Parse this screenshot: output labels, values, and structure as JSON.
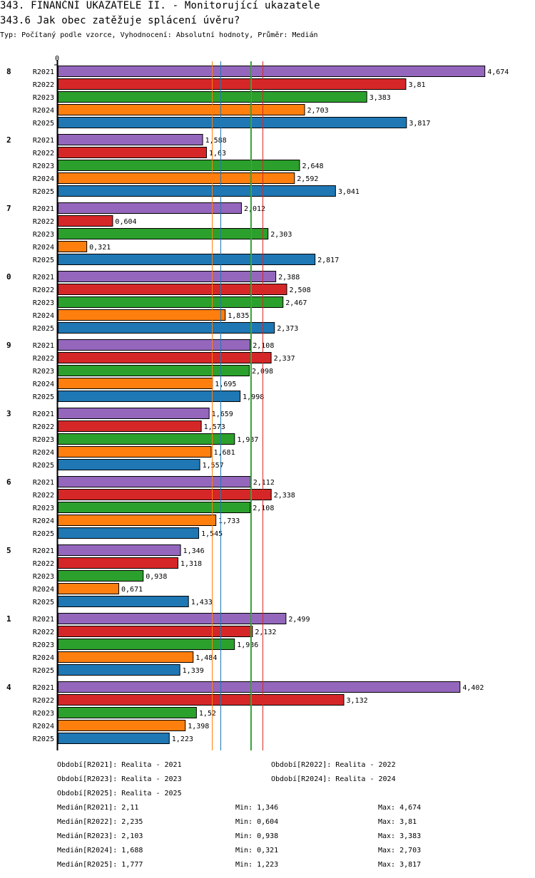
{
  "header": {
    "title": "343. FINANČNÍ UKAZATELE II. - Monitorující ukazatele",
    "question": "343.6 Jak obec zatěžuje splácení úvěru?",
    "subtitle": "Typ: Počítaný podle vzorce, Vyhodnocení: Absolutní hodnoty, Průměr: Medián"
  },
  "chart_data": {
    "type": "bar",
    "orientation": "horizontal",
    "title": "343.6 Jak obec zatěžuje splácení úvěru?",
    "xlabel": "",
    "ylabel": "",
    "x_tick_labels": [
      "0"
    ],
    "xlim": [
      0,
      4.674
    ],
    "grid": false,
    "legend_position": "bottom",
    "decimal_separator": ",",
    "categories": [
      "8",
      "2",
      "7",
      "0",
      "9",
      "3",
      "6",
      "5",
      "1",
      "4"
    ],
    "series": [
      {
        "name": "R2021",
        "label": "Realita - 2021",
        "color": "#9467bd",
        "values": [
          4.674,
          1.588,
          2.012,
          2.388,
          2.108,
          1.659,
          2.112,
          1.346,
          2.499,
          4.402
        ]
      },
      {
        "name": "R2022",
        "label": "Realita - 2022",
        "color": "#d62728",
        "values": [
          3.81,
          1.63,
          0.604,
          2.508,
          2.337,
          1.573,
          2.338,
          1.318,
          2.132,
          3.132
        ]
      },
      {
        "name": "R2023",
        "label": "Realita - 2023",
        "color": "#2ca02c",
        "values": [
          3.383,
          2.648,
          2.303,
          2.467,
          2.098,
          1.937,
          2.108,
          0.938,
          1.936,
          1.52
        ]
      },
      {
        "name": "R2024",
        "label": "Realita - 2024",
        "color": "#ff7f0e",
        "values": [
          2.703,
          2.592,
          0.321,
          1.835,
          1.695,
          1.681,
          1.733,
          0.671,
          1.484,
          1.398
        ]
      },
      {
        "name": "R2025",
        "label": "Realita - 2025",
        "color": "#1f77b4",
        "values": [
          3.817,
          3.041,
          2.817,
          2.373,
          1.998,
          1.557,
          1.545,
          1.433,
          1.339,
          1.223
        ]
      }
    ],
    "median_lines": [
      {
        "series": "R2024",
        "value": 1.688,
        "color": "#ff7f0e"
      },
      {
        "series": "R2025",
        "value": 1.777,
        "color": "#1f77b4"
      },
      {
        "series": "R2023",
        "value": 2.103,
        "color": "#2ca02c"
      },
      {
        "series": "R2021",
        "value": 2.11,
        "color": "#9467bd"
      },
      {
        "series": "R2022",
        "value": 2.235,
        "color": "#d62728"
      }
    ]
  },
  "legend": {
    "periods": [
      "Období[R2021]: Realita - 2021",
      "Období[R2022]: Realita - 2022",
      "Období[R2023]: Realita - 2023",
      "Období[R2024]: Realita - 2024",
      "Období[R2025]: Realita - 2025"
    ],
    "stats": [
      {
        "median": "Medián[R2021]: 2,11",
        "min": "Min: 1,346",
        "max": "Max: 4,674"
      },
      {
        "median": "Medián[R2022]: 2,235",
        "min": "Min: 0,604",
        "max": "Max: 3,81"
      },
      {
        "median": "Medián[R2023]: 2,103",
        "min": "Min: 0,938",
        "max": "Max: 3,383"
      },
      {
        "median": "Medián[R2024]: 1,688",
        "min": "Min: 0,321",
        "max": "Max: 2,703"
      },
      {
        "median": "Medián[R2025]: 1,777",
        "min": "Min: 1,223",
        "max": "Max: 3,817"
      }
    ]
  }
}
